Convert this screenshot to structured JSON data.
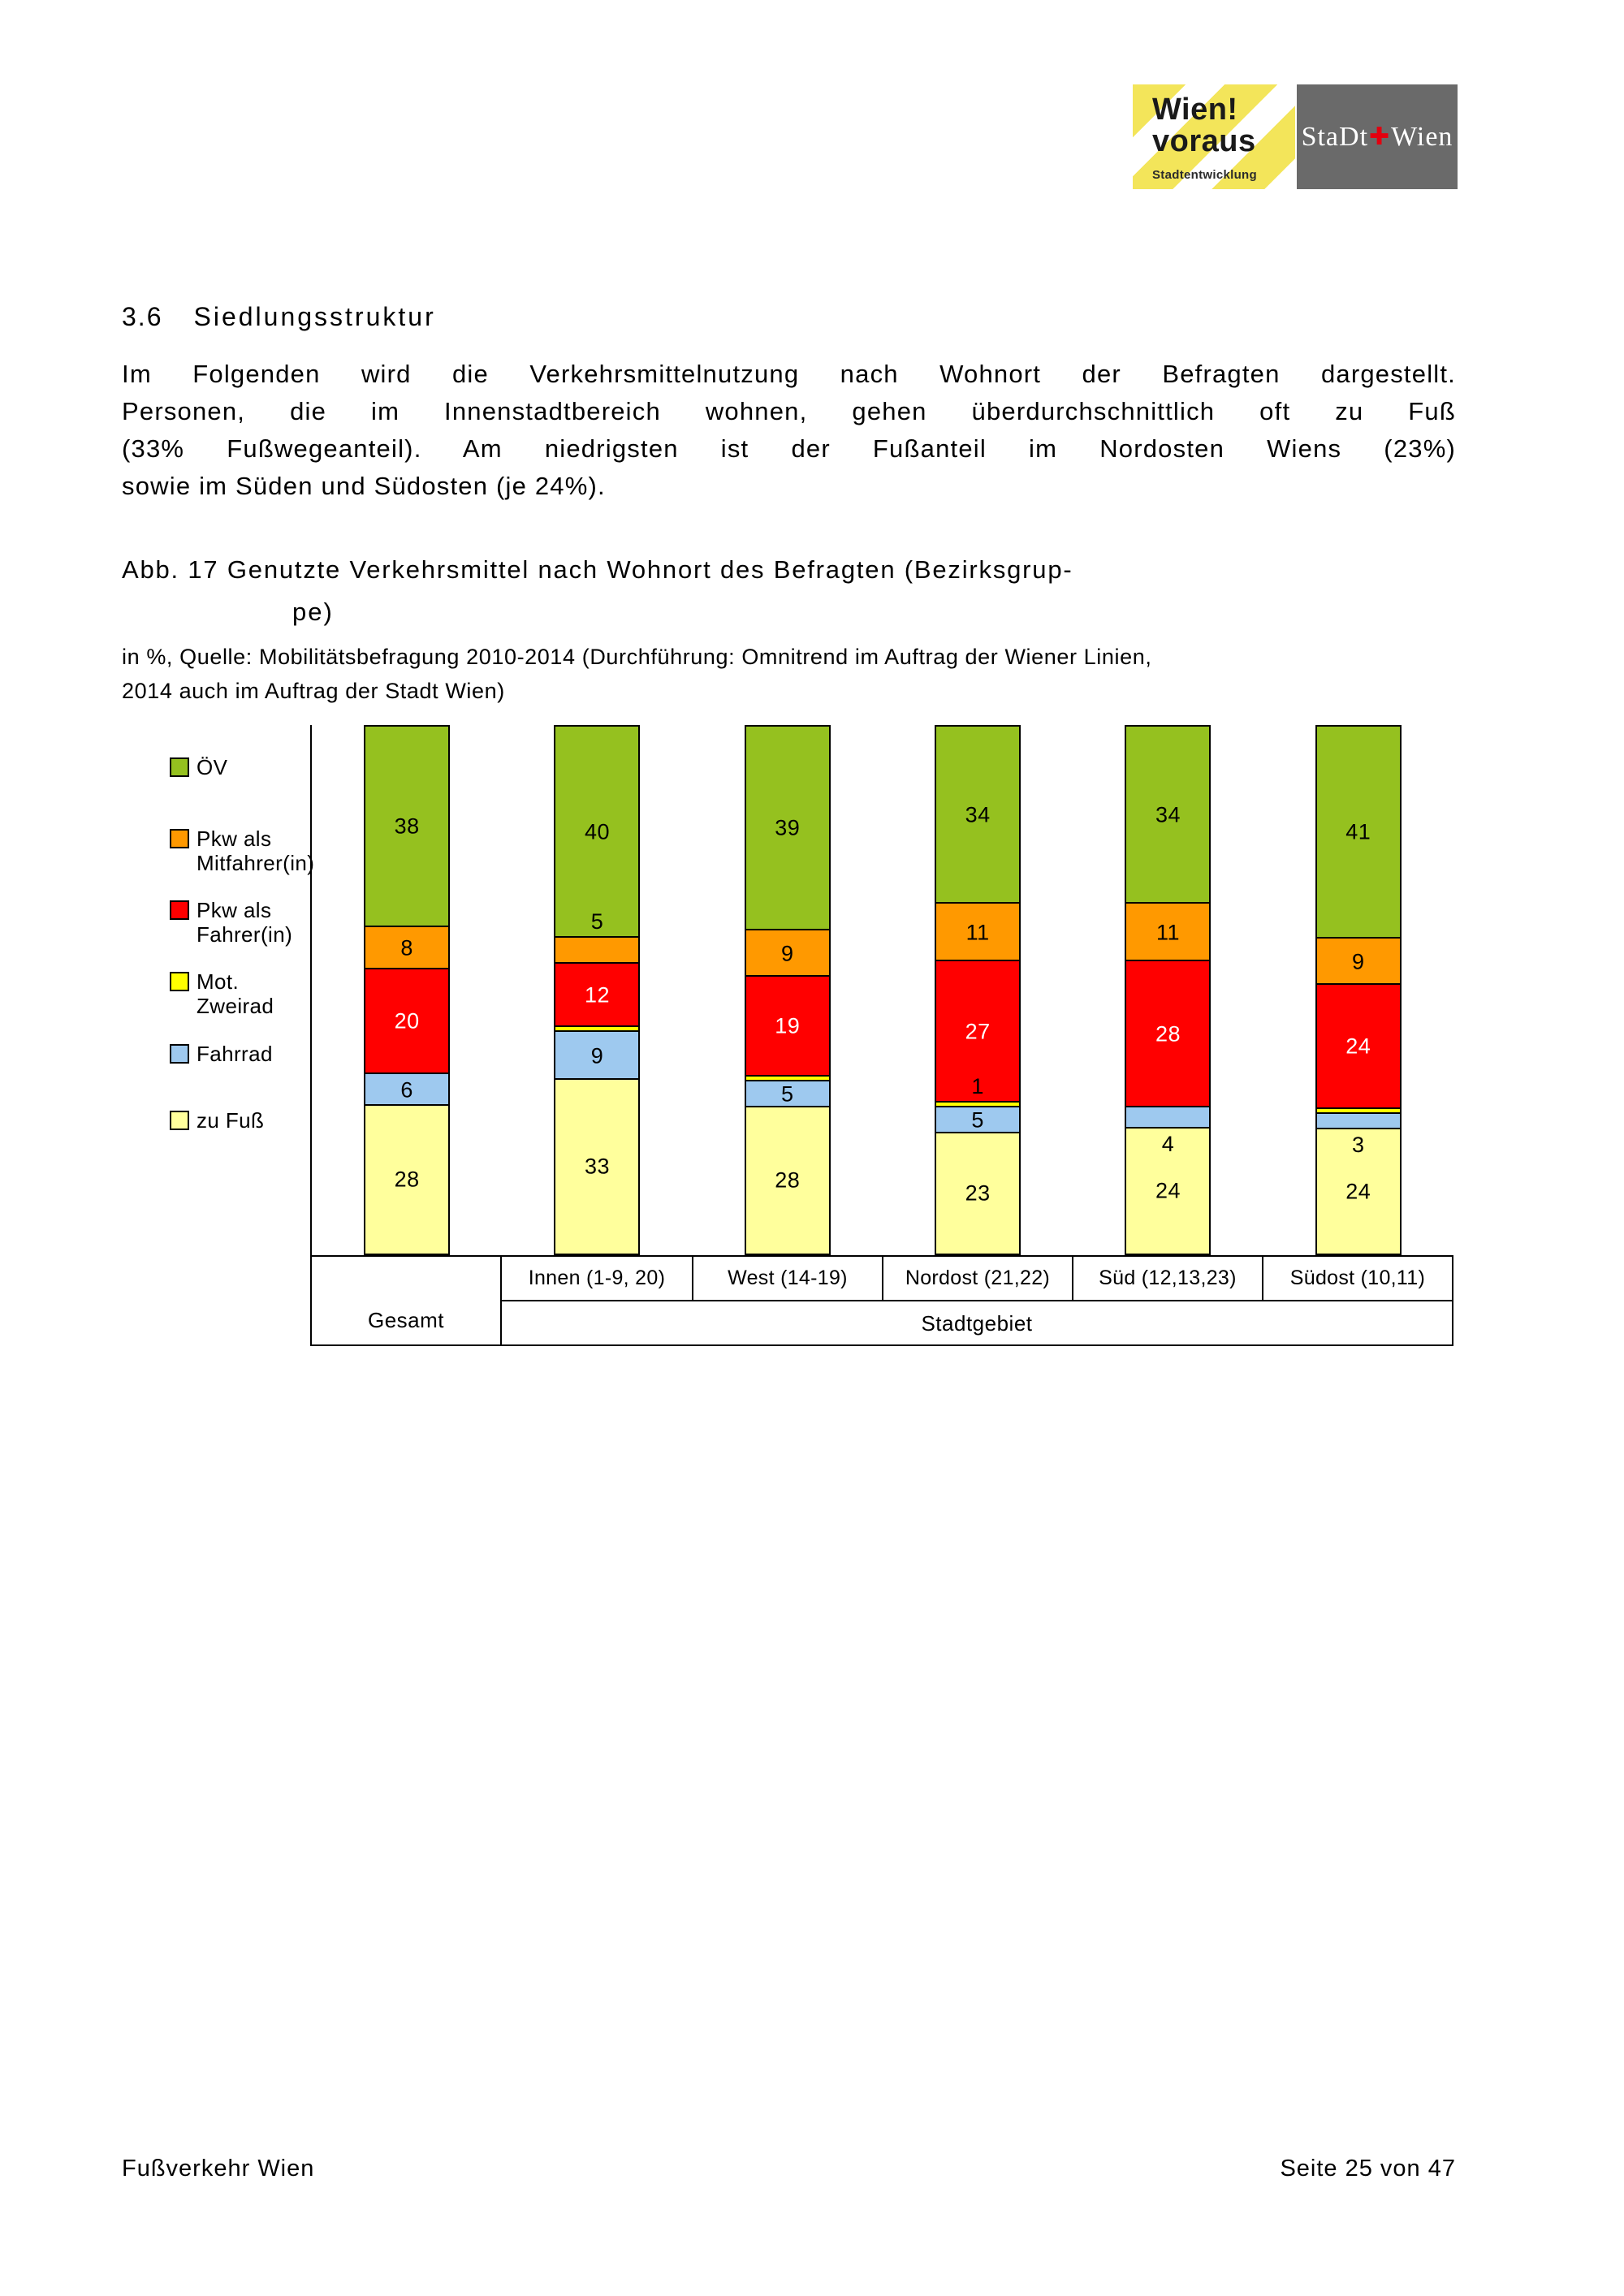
{
  "header": {
    "logo_left": {
      "line1": "Wien!",
      "line2": "voraus",
      "subtitle": "Stadtentwicklung"
    },
    "logo_right": {
      "part1": "StaDt",
      "cross": "✚",
      "part2": "Wien"
    }
  },
  "section": {
    "number": "3.6",
    "title": "Siedlungsstruktur"
  },
  "paragraph": {
    "lines": [
      "Im Folgenden wird die Verkehrsmittelnutzung nach Wohnort der Befragten dargestellt.",
      "Personen, die im Innenstadtbereich wohnen, gehen überdurchschnittlich oft zu Fuß",
      "(33% Fußwegeanteil). Am niedrigsten ist der Fußanteil im Nordosten Wiens (23%)",
      "sowie im Süden und Südosten (je 24%)."
    ]
  },
  "figure": {
    "caption_line1": "Abb. 17 Genutzte Verkehrsmittel nach Wohnort des Befragten (Bezirksgrup-",
    "caption_line2": "pe)",
    "source_line1": "in %, Quelle: Mobilitätsbefragung 2010-2014 (Durchführung: Omnitrend im Auftrag der Wiener Linien,",
    "source_line2": "2014 auch im Auftrag der Stadt Wien)"
  },
  "chart_data": {
    "type": "bar",
    "subtype": "stacked-100-percent",
    "unit": "%",
    "categories": [
      "Gesamt",
      "Innen (1-9, 20)",
      "West (14-19)",
      "Nordost (21,22)",
      "Süd (12,13,23)",
      "Südost (10,11)"
    ],
    "group_label": "Stadtgebiet",
    "legend_position": "left",
    "legend": [
      {
        "lines": [
          "ÖV"
        ],
        "color": "#95C11F"
      },
      {
        "lines": [
          "Pkw als",
          "Mitfahrer(in)"
        ],
        "color": "#FF9900"
      },
      {
        "lines": [
          "Pkw als",
          "Fahrer(in)"
        ],
        "color": "#FF0000"
      },
      {
        "lines": [
          "Mot.",
          "Zweirad"
        ],
        "color": "#FFFF00"
      },
      {
        "lines": [
          "Fahrrad"
        ],
        "color": "#9EC9EF"
      },
      {
        "lines": [
          "zu Fuß"
        ],
        "color": "#FFFF9C"
      }
    ],
    "series": [
      {
        "name": "zu Fuß",
        "color": "#FFFF9C",
        "values": [
          28,
          33,
          28,
          23,
          24,
          24
        ],
        "label_pos": [
          "c",
          "c",
          "c",
          "c",
          "c",
          "c"
        ]
      },
      {
        "name": "Fahrrad",
        "color": "#9EC9EF",
        "values": [
          6,
          9,
          5,
          5,
          4,
          3
        ],
        "label_pos": [
          "c",
          "c",
          "c",
          "c",
          "b",
          "b"
        ]
      },
      {
        "name": "Mot. Zweirad",
        "color": "#FFFF00",
        "values": [
          0,
          1,
          1,
          1,
          0,
          1
        ],
        "label_pos": [
          "",
          "",
          "",
          "a",
          "",
          ""
        ]
      },
      {
        "name": "Pkw als Fahrer(in)",
        "color": "#FF0000",
        "label_color": "#FFFFFF",
        "values": [
          20,
          12,
          19,
          27,
          28,
          24
        ],
        "label_pos": [
          "c",
          "c",
          "c",
          "c",
          "c",
          "c"
        ]
      },
      {
        "name": "Pkw als Mitfahrer(in)",
        "color": "#FF9900",
        "values": [
          8,
          5,
          9,
          11,
          11,
          9
        ],
        "label_pos": [
          "c",
          "a",
          "c",
          "c",
          "c",
          "c"
        ]
      },
      {
        "name": "ÖV",
        "color": "#95C11F",
        "values": [
          38,
          40,
          39,
          34,
          34,
          41
        ],
        "label_pos": [
          "c",
          "c",
          "c",
          "c",
          "c",
          "c"
        ]
      }
    ]
  },
  "footer": {
    "left": "Fußverkehr Wien",
    "right": "Seite 25 von 47"
  }
}
